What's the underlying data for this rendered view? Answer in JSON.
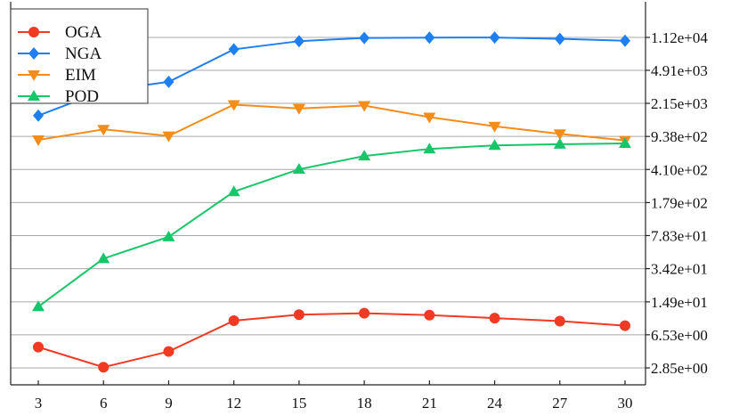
{
  "chart_data": {
    "type": "line",
    "title": "",
    "xlabel": "",
    "ylabel": "",
    "x": [
      3,
      6,
      9,
      12,
      15,
      18,
      21,
      24,
      27,
      30
    ],
    "x_tick_labels": [
      "3",
      "6",
      "9",
      "12",
      "15",
      "18",
      "21",
      "24",
      "27",
      "30"
    ],
    "y_scale": "log",
    "y_axis_side": "right",
    "y_ticks": [
      2.85,
      6.53,
      14.9,
      34.2,
      78.3,
      179,
      410,
      938,
      2150,
      4910,
      11200
    ],
    "y_tick_labels": [
      "2.85e+00",
      "6.53e+00",
      "1.49e+01",
      "3.42e+01",
      "7.83e+01",
      "1.79e+02",
      "4.10e+02",
      "9.38e+02",
      "2.15e+03",
      "4.91e+03",
      "1.12e+04"
    ],
    "ylim": [
      2.4,
      17500
    ],
    "grid": "horizontal",
    "legend_position": "top-left",
    "series": [
      {
        "name": "OGA",
        "color": "#f03a24",
        "marker": "circle",
        "values": [
          4.8,
          2.9,
          4.3,
          9.3,
          10.8,
          11.2,
          10.7,
          9.9,
          9.2,
          8.2
        ]
      },
      {
        "name": "NGA",
        "color": "#1f7ff0",
        "marker": "diamond",
        "values": [
          1580,
          2950,
          3680,
          8300,
          10200,
          11050,
          11150,
          11180,
          10800,
          10300
        ]
      },
      {
        "name": "EIM",
        "color": "#f48c1a",
        "marker": "triangle-down",
        "values": [
          860,
          1120,
          950,
          2080,
          1890,
          2030,
          1520,
          1210,
          1000,
          850
        ]
      },
      {
        "name": "POD",
        "color": "#18c66a",
        "marker": "triangle-up",
        "values": [
          13.2,
          44,
          76,
          235,
          412,
          575,
          686,
          750,
          772,
          788
        ]
      }
    ]
  }
}
